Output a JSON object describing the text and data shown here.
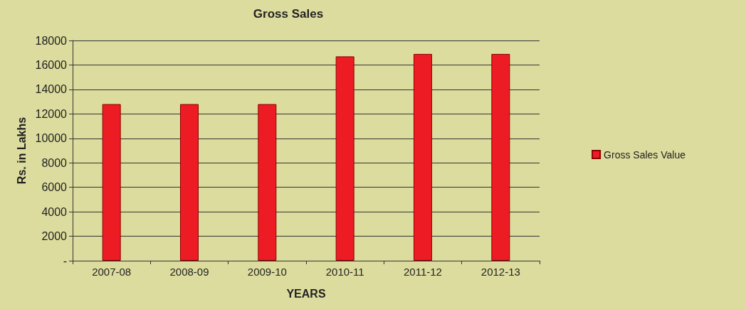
{
  "chart_data": {
    "type": "bar",
    "title": "Gross Sales",
    "xlabel": "YEARS",
    "ylabel": "Rs. in Lakhs",
    "categories": [
      "2007-08",
      "2008-09",
      "2009-10",
      "2010-11",
      "2011-12",
      "2012-13"
    ],
    "series": [
      {
        "name": "Gross Sales Value",
        "color": "#ed1c24",
        "values": [
          12800,
          12800,
          12800,
          16700,
          16900,
          16900
        ]
      }
    ],
    "ylim": [
      0,
      18000
    ],
    "yticks": [
      {
        "value": 0,
        "label": "-"
      },
      2000,
      4000,
      6000,
      8000,
      10000,
      12000,
      14000,
      16000,
      18000
    ],
    "grid": "y",
    "legend": "right"
  }
}
